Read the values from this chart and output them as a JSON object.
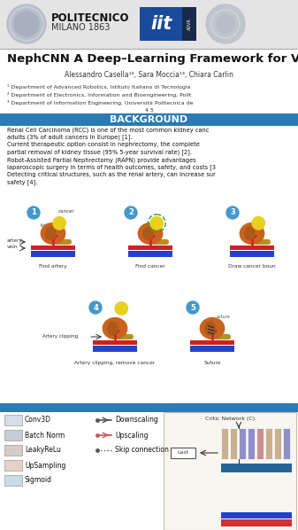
{
  "bg_color": "#f0f0f0",
  "header_bg": "#e4e4e4",
  "title": "NephCNN A Deep–Learning Framework for Ves",
  "authors": "Alessandro Casella¹², Sara Moccia¹³, Chiara Carlin",
  "affiliations": [
    "¹ Department of Advanced Robotics, Istituto Italiano di Tecnologia",
    "² Department of Electronics, Information and Bioengineering, Polit",
    "³ Department of Information Engineering, Università Politecnica de"
  ],
  "aff_extra": "4 5",
  "section_bg": "#2a7ab5",
  "section_text": "BACKGROUND",
  "body_text_lines": [
    "Renal Cell Carcinoma (RCC) is one of the most common kidney canc",
    "adults (3% of adult cancers in Europe) [1].",
    "Current therapeutic option consist in nephrectomy, the complete",
    "partial removal of kidney tissue (95% 5-year survival rate) [2].",
    "Robot-Assisted Partial Nephrectomy (RAPN) provide advantages",
    "laparoscopic surgery in terms of health outcomes, safety, and costs [3",
    "Detecting critical structures, such as the renal artery, can increase sur",
    "safety [4]."
  ],
  "legend_left_labels": [
    "Conv3D",
    "Batch Norm",
    "LeakyReLu",
    "UpSampling",
    "Sigmoid"
  ],
  "legend_left_colors": [
    "#d8dce8",
    "#c8ccd8",
    "#d8ccc8",
    "#e8d0c8",
    "#c8dce8"
  ],
  "legend_right_labels": [
    "Downscaling",
    "Upscaling",
    "Skip connection"
  ],
  "step_numbers": [
    "1",
    "2",
    "3",
    "4",
    "5"
  ],
  "step_labels": [
    "Find artery",
    "Find cancer",
    "Draw cancer boun",
    "Artery clipping, remove cancer",
    "Suture"
  ],
  "step_circle_color": "#4499cc",
  "artery_color": "#cc2222",
  "vein_color": "#2244cc",
  "kidney_color": "#c86420",
  "cancer_color": "#e8d020",
  "separator_color": "#2a7ab5",
  "white": "#ffffff",
  "critic_label": "Critic Network (C)",
  "last_label": "Last"
}
